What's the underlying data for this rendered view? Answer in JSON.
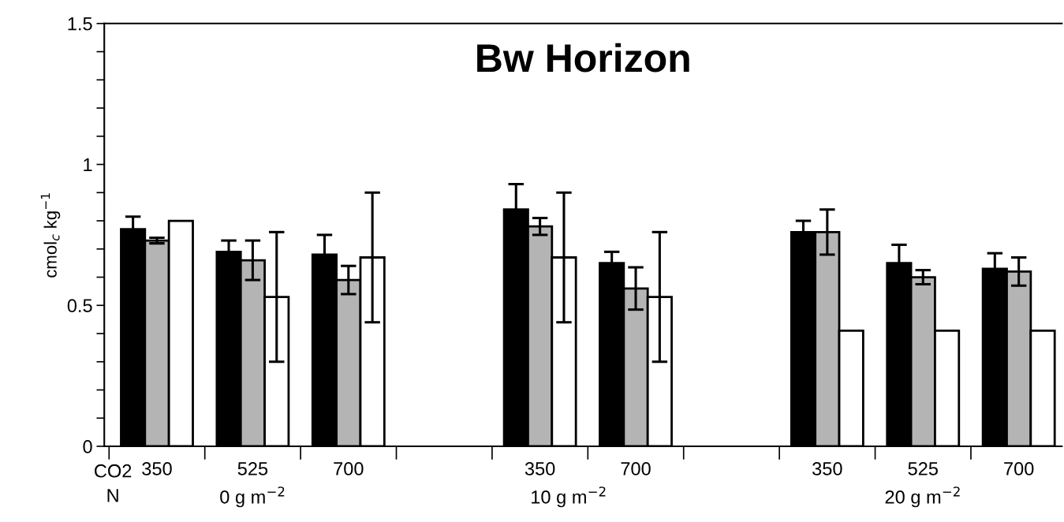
{
  "chart_data": {
    "type": "bar",
    "title": "Bw Horizon",
    "ylabel": "cmol$_{c}$ kg$^{−1}$",
    "categories": [
      "350",
      "525",
      "700",
      null,
      "350",
      "700",
      null,
      "350",
      "525",
      "700"
    ],
    "series": [
      {
        "color": "#000000",
        "values": [
          0.77,
          0.69,
          0.68,
          null,
          0.84,
          0.65,
          null,
          0.76,
          0.65,
          0.63
        ],
        "errors": [
          0.045,
          0.04,
          0.07,
          null,
          0.09,
          0.04,
          null,
          0.04,
          0.065,
          0.055
        ]
      },
      {
        "color": "#b4b4b4",
        "values": [
          0.73,
          0.66,
          0.59,
          null,
          0.78,
          0.56,
          null,
          0.76,
          0.6,
          0.62
        ],
        "errors": [
          0.01,
          0.07,
          0.05,
          null,
          0.03,
          0.075,
          null,
          0.08,
          0.025,
          0.05
        ]
      },
      {
        "color": "#ffffff",
        "values": [
          0.8,
          0.53,
          0.67,
          null,
          0.67,
          0.53,
          null,
          0.41,
          0.41,
          0.41
        ],
        "errors": [
          null,
          0.23,
          0.23,
          null,
          0.23,
          0.23,
          null,
          null,
          null,
          null
        ]
      }
    ],
    "ylim": [
      0,
      1.5
    ],
    "yticks": [
      0,
      {
        "value": 0.1,
        "label": null
      },
      {
        "value": 0.2,
        "label": null
      },
      {
        "value": 0.3,
        "label": null
      },
      {
        "value": 0.4,
        "label": null
      },
      0.5,
      {
        "value": 0.6,
        "label": null
      },
      {
        "value": 0.7,
        "label": null
      },
      {
        "value": 0.8,
        "label": null
      },
      {
        "value": 0.9,
        "label": null
      },
      1,
      {
        "value": 1.1,
        "label": null
      },
      {
        "value": 1.2,
        "label": null
      },
      {
        "value": 1.3,
        "label": null
      },
      {
        "value": 1.4,
        "label": null
      },
      1.5
    ],
    "grid": false,
    "legend": false,
    "annotations": [
      "CO2",
      "N",
      "0 g m$^{−2}$",
      "10 g m$^{−2}$",
      "20 g m$^{−2}$"
    ]
  }
}
